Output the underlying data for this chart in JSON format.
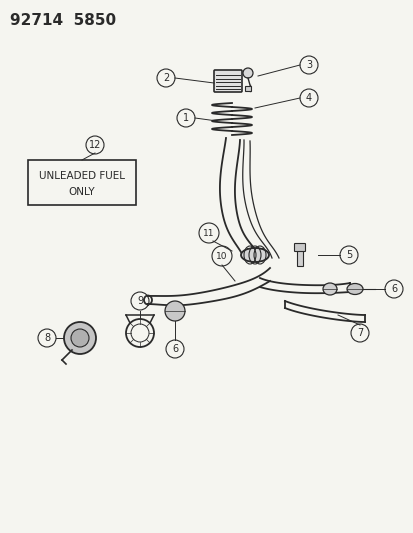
{
  "title": "92714  5850",
  "bg_color": "#f5f5f0",
  "line_color": "#2a2a2a",
  "title_fontsize": 11,
  "unleaded_text_line1": "UNLEADED FUEL",
  "unleaded_text_line2": "ONLY"
}
